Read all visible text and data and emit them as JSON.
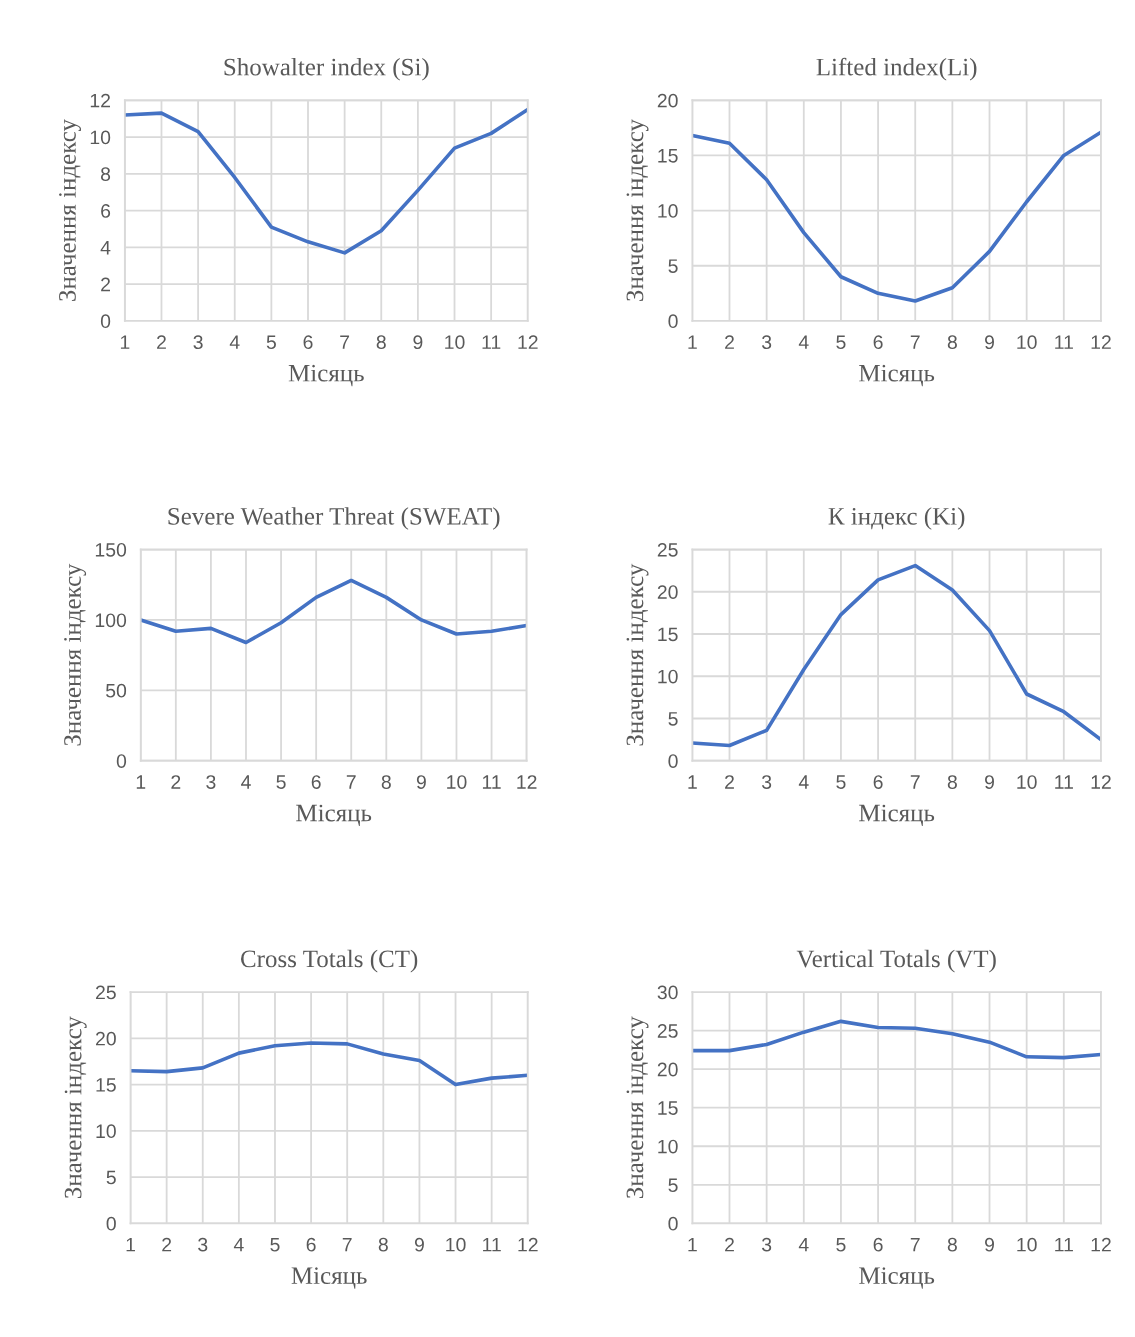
{
  "chart_data": [
    {
      "type": "line",
      "title": "Showalter index (Si)",
      "xlabel": "Місяць",
      "ylabel": "Значення індексу",
      "categories": [
        "1",
        "2",
        "3",
        "4",
        "5",
        "6",
        "7",
        "8",
        "9",
        "10",
        "11",
        "12"
      ],
      "series": [
        {
          "color": "#4472c4",
          "values": [
            11.2,
            11.3,
            10.3,
            7.8,
            5.1,
            4.3,
            3.7,
            4.9,
            7.1,
            9.4,
            10.2,
            11.5
          ]
        }
      ],
      "ylim": [
        0,
        12
      ],
      "yticks": [
        0,
        2,
        4,
        6,
        8,
        10,
        12
      ],
      "grid": true,
      "marker": "none",
      "line_style": "solid"
    },
    {
      "type": "line",
      "title": "Lifted index(Li)",
      "xlabel": "Місяць",
      "ylabel": "Значення індексу",
      "categories": [
        "1",
        "2",
        "3",
        "4",
        "5",
        "6",
        "7",
        "8",
        "9",
        "10",
        "11",
        "12"
      ],
      "series": [
        {
          "color": "#4472c4",
          "values": [
            16.8,
            16.1,
            12.8,
            8.0,
            4.0,
            2.5,
            1.8,
            3.0,
            6.3,
            10.8,
            15.0,
            17.1
          ]
        }
      ],
      "ylim": [
        0,
        20
      ],
      "yticks": [
        0,
        5,
        10,
        15,
        20
      ],
      "grid": true,
      "marker": "none",
      "line_style": "solid"
    },
    {
      "type": "line",
      "title": "Severe Weather Threat (SWEAT)",
      "xlabel": "Місяць",
      "ylabel": "Значення індексу",
      "categories": [
        "1",
        "2",
        "3",
        "4",
        "5",
        "6",
        "7",
        "8",
        "9",
        "10",
        "11",
        "12"
      ],
      "series": [
        {
          "color": "#4472c4",
          "values": [
            100,
            92,
            94,
            84,
            98,
            116,
            128,
            116,
            100,
            90,
            92,
            96
          ]
        }
      ],
      "ylim": [
        0,
        150
      ],
      "yticks": [
        0,
        50,
        100,
        150
      ],
      "grid": true,
      "marker": "none",
      "line_style": "solid"
    },
    {
      "type": "line",
      "title": "К індекс (Ki)",
      "xlabel": "Місяць",
      "ylabel": "Значення індексу",
      "categories": [
        "1",
        "2",
        "3",
        "4",
        "5",
        "6",
        "7",
        "8",
        "9",
        "10",
        "11",
        "12"
      ],
      "series": [
        {
          "color": "#4472c4",
          "values": [
            2.1,
            1.8,
            3.6,
            10.8,
            17.3,
            21.4,
            23.1,
            20.2,
            15.4,
            7.9,
            5.8,
            2.5
          ]
        }
      ],
      "ylim": [
        0,
        25
      ],
      "yticks": [
        0,
        5,
        10,
        15,
        20,
        25
      ],
      "grid": true,
      "marker": "none",
      "line_style": "solid"
    },
    {
      "type": "line",
      "title": "Cross Totals (CT)",
      "xlabel": "Місяць",
      "ylabel": "Значення індексу",
      "categories": [
        "1",
        "2",
        "3",
        "4",
        "5",
        "6",
        "7",
        "8",
        "9",
        "10",
        "11",
        "12"
      ],
      "series": [
        {
          "color": "#4472c4",
          "values": [
            16.5,
            16.4,
            16.8,
            18.4,
            19.2,
            19.5,
            19.4,
            18.3,
            17.6,
            15.0,
            15.7,
            16.0
          ]
        }
      ],
      "ylim": [
        0,
        25
      ],
      "yticks": [
        0,
        5,
        10,
        15,
        20,
        25
      ],
      "grid": true,
      "marker": "none",
      "line_style": "solid"
    },
    {
      "type": "line",
      "title": "Vertical Totals (VT)",
      "xlabel": "Місяць",
      "ylabel": "Значення індексу",
      "categories": [
        "1",
        "2",
        "3",
        "4",
        "5",
        "6",
        "7",
        "8",
        "9",
        "10",
        "11",
        "12"
      ],
      "series": [
        {
          "color": "#4472c4",
          "values": [
            22.4,
            22.4,
            23.2,
            24.8,
            26.2,
            25.4,
            25.3,
            24.6,
            23.5,
            21.6,
            21.5,
            21.9
          ]
        }
      ],
      "ylim": [
        0,
        30
      ],
      "yticks": [
        0,
        5,
        10,
        15,
        20,
        25,
        30
      ],
      "grid": true,
      "marker": "none",
      "line_style": "solid"
    }
  ]
}
